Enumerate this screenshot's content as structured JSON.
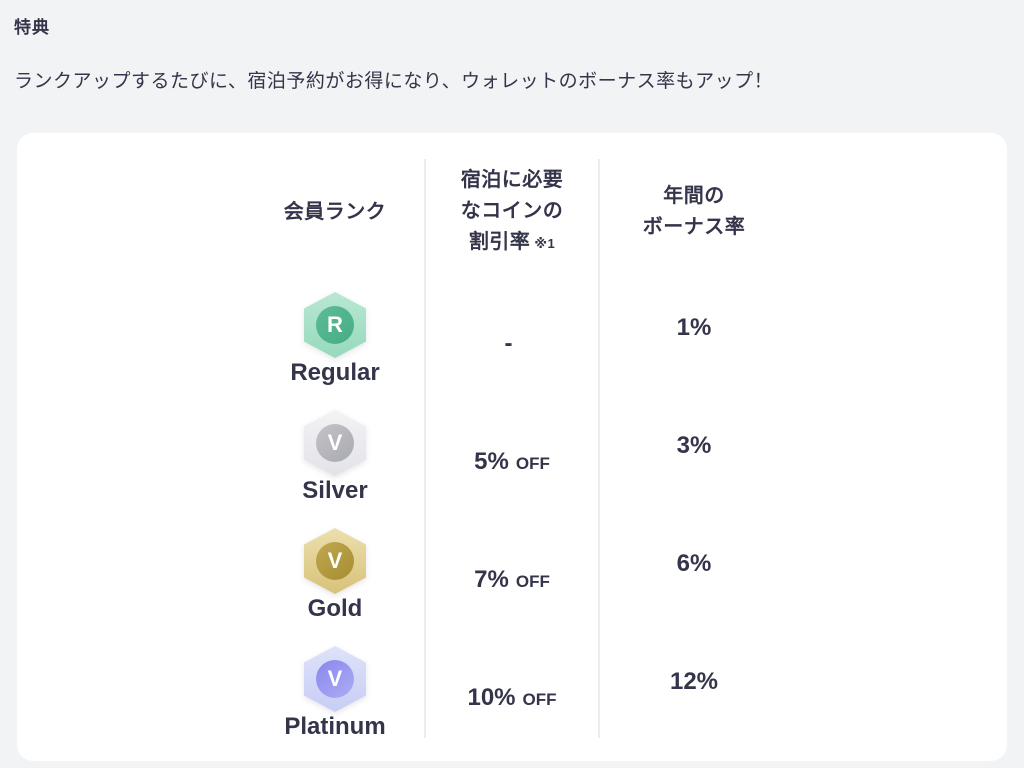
{
  "page": {
    "background": "#f2f3f5",
    "title": "特典",
    "subtitle": "ランクアップするたびに、宿泊予約がお得になり、ウォレットのボーナス率もアップ！"
  },
  "colors": {
    "text_primary": "#34344a",
    "divider": "#ededf1",
    "card_background": "#ffffff"
  },
  "card": {
    "table": {
      "columns": {
        "rank": {
          "label": "会員ランク"
        },
        "discount": {
          "line1": "宿泊に必要",
          "line2": "なコインの",
          "line3": "割引率",
          "note": "※1"
        },
        "bonus": {
          "line1": "年間の",
          "line2": "ボーナス率"
        }
      },
      "rows": [
        {
          "rank": "Regular",
          "badge_letter": "R",
          "badge": {
            "outer_top": "#b9e7d3",
            "outer_bottom": "#96d9bb",
            "inner_top": "#5cbc97",
            "inner_bottom": "#46ac85"
          },
          "discount_value": "-",
          "discount_suffix": "",
          "bonus_value": "1%"
        },
        {
          "rank": "Silver",
          "badge_letter": "V",
          "badge": {
            "outer_top": "#f3f3f5",
            "outer_bottom": "#e2e2e8",
            "inner_top": "#c3c3c8",
            "inner_bottom": "#a9a9b1"
          },
          "discount_value": "5%",
          "discount_suffix": "OFF",
          "bonus_value": "3%"
        },
        {
          "rank": "Gold",
          "badge_letter": "V",
          "badge": {
            "outer_top": "#ecdfae",
            "outer_bottom": "#d8c278",
            "inner_top": "#c0a84f",
            "inner_bottom": "#a68d33"
          },
          "discount_value": "7%",
          "discount_suffix": "OFF",
          "bonus_value": "6%"
        },
        {
          "rank": "Platinum",
          "badge_letter": "V",
          "badge": {
            "outer_top": "#dee2fa",
            "outer_bottom": "#c8cdf4",
            "inner_top": "#8b86ee",
            "inner_bottom": "#abadf4"
          },
          "discount_value": "10%",
          "discount_suffix": "OFF",
          "bonus_value": "12%"
        }
      ]
    }
  }
}
